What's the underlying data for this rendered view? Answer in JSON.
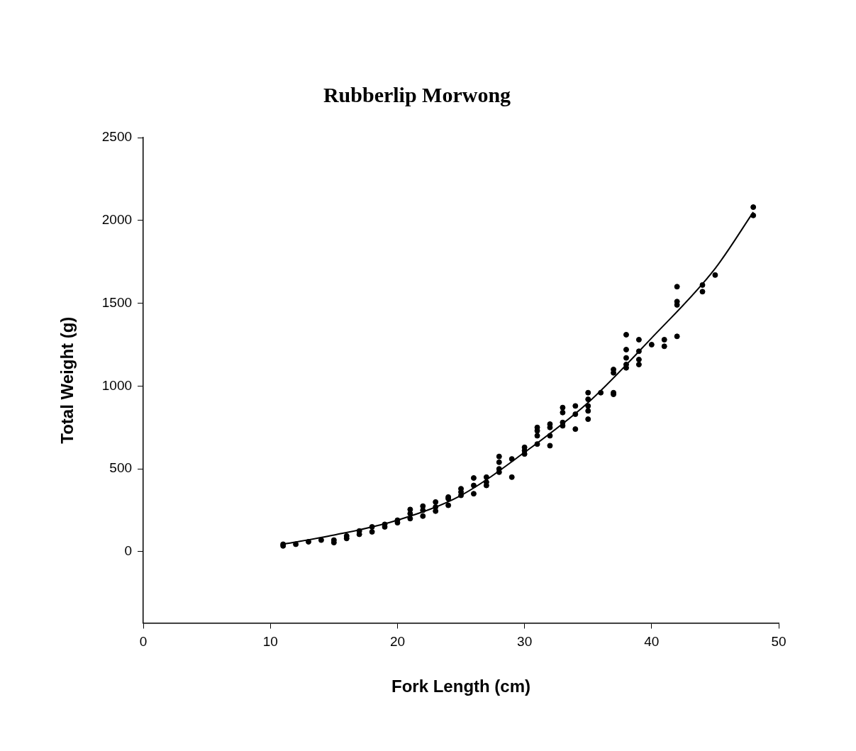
{
  "chart_data": {
    "type": "scatter",
    "title": "Rubberlip Morwong",
    "xlabel": "Fork Length (cm)",
    "ylabel": "Total Weight (g)",
    "xlim": [
      0,
      50
    ],
    "xticks": [
      0,
      10,
      20,
      30,
      40,
      50
    ],
    "ylim": [
      -430,
      2500
    ],
    "yticks": [
      0,
      500,
      1000,
      1500,
      2000,
      2500
    ],
    "grid": false,
    "legend": false,
    "marker": "circle",
    "series": [
      {
        "type": "scatter",
        "color": "#000000",
        "x": [
          11,
          11,
          12,
          13,
          14,
          15,
          15,
          16,
          16,
          17,
          17,
          18,
          18,
          19,
          19,
          20,
          20,
          21,
          21,
          21,
          22,
          22,
          22,
          23,
          23,
          23,
          24,
          24,
          24,
          25,
          25,
          25,
          26,
          26,
          26,
          27,
          27,
          27,
          28,
          28,
          28,
          28,
          29,
          29,
          30,
          30,
          30,
          31,
          31,
          31,
          31,
          32,
          32,
          32,
          32,
          33,
          33,
          33,
          33,
          34,
          34,
          34,
          35,
          35,
          35,
          35,
          35,
          36,
          37,
          37,
          37,
          37,
          38,
          38,
          38,
          38,
          38,
          39,
          39,
          39,
          39,
          40,
          41,
          41,
          42,
          42,
          42,
          42,
          44,
          44,
          45,
          48,
          48
        ],
        "values": [
          35,
          45,
          45,
          60,
          70,
          55,
          70,
          80,
          95,
          105,
          125,
          120,
          150,
          150,
          165,
          175,
          190,
          200,
          230,
          255,
          215,
          250,
          275,
          245,
          270,
          300,
          280,
          320,
          330,
          340,
          360,
          380,
          350,
          400,
          445,
          400,
          420,
          450,
          480,
          500,
          540,
          575,
          450,
          560,
          590,
          610,
          630,
          650,
          700,
          730,
          750,
          640,
          700,
          750,
          770,
          760,
          780,
          840,
          870,
          740,
          830,
          880,
          800,
          850,
          880,
          920,
          960,
          960,
          950,
          960,
          1080,
          1100,
          1110,
          1130,
          1170,
          1220,
          1310,
          1130,
          1160,
          1210,
          1280,
          1250,
          1240,
          1280,
          1300,
          1490,
          1510,
          1600,
          1570,
          1610,
          1670,
          2030,
          2080
        ]
      },
      {
        "type": "line",
        "color": "#000000",
        "marker": "none",
        "line_style": "solid",
        "x": [
          11,
          15,
          20,
          25,
          30,
          35,
          40,
          45,
          48
        ],
        "values": [
          45,
          100,
          190,
          340,
          600,
          900,
          1290,
          1710,
          2050
        ]
      }
    ]
  }
}
